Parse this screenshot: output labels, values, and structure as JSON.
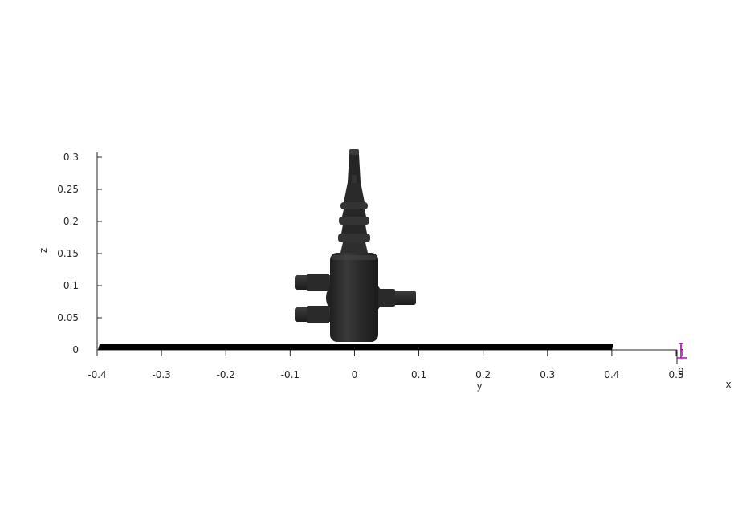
{
  "chart_data": {
    "type": "3d-scene",
    "xlabel": "x",
    "ylabel": "y",
    "zlabel": "z",
    "y_ticks": [
      "-0.4",
      "-0.3",
      "-0.2",
      "-0.1",
      "0",
      "0.1",
      "0.2",
      "0.3",
      "0.4",
      "0.5"
    ],
    "z_ticks": [
      "0",
      "0.05",
      "0.1",
      "0.15",
      "0.2",
      "0.25",
      "0.3"
    ],
    "y_range": [
      -0.4,
      0.5
    ],
    "z_range": [
      0,
      0.3
    ],
    "x_axis_tick_labels": [
      "1",
      "0"
    ],
    "objects": [
      "robot-body",
      "ground-plate",
      "marker"
    ],
    "colors": {
      "body": "#2b2b2b",
      "body_highlight": "#4a4a4a",
      "axis": "#262626",
      "ground": "#000000",
      "marker": "#c000c0"
    }
  }
}
